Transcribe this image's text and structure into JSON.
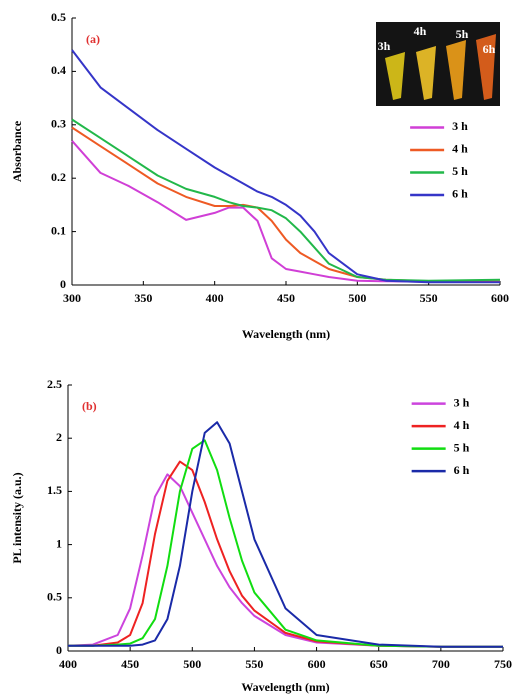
{
  "chart_data": [
    {
      "type": "line",
      "panel_label": "(a)",
      "x_label": "Wavelength (nm)",
      "y_label": "Absorbance",
      "xlim": [
        300,
        600
      ],
      "xticks": [
        300,
        350,
        400,
        450,
        500,
        550,
        600
      ],
      "ylim": [
        0,
        0.5
      ],
      "yticks": [
        0,
        0.1,
        0.2,
        0.3,
        0.4,
        0.5
      ],
      "legend": "right",
      "inset_labels": [
        "3h",
        "4h",
        "5h",
        "6h"
      ],
      "x": [
        300,
        320,
        340,
        360,
        380,
        400,
        410,
        420,
        430,
        440,
        450,
        460,
        470,
        480,
        500,
        520,
        550,
        600
      ],
      "series": [
        {
          "name": "3 h",
          "color": "#d03fd6",
          "values": [
            0.27,
            0.21,
            0.185,
            0.155,
            0.122,
            0.135,
            0.145,
            0.145,
            0.12,
            0.05,
            0.03,
            0.025,
            0.02,
            0.015,
            0.008,
            0.007,
            0.006,
            0.006
          ]
        },
        {
          "name": "4 h",
          "color": "#ee5a24",
          "values": [
            0.295,
            0.26,
            0.225,
            0.19,
            0.165,
            0.148,
            0.148,
            0.15,
            0.145,
            0.12,
            0.085,
            0.06,
            0.045,
            0.03,
            0.015,
            0.01,
            0.007,
            0.006
          ]
        },
        {
          "name": "5 h",
          "color": "#22b84a",
          "values": [
            0.31,
            0.275,
            0.24,
            0.205,
            0.18,
            0.165,
            0.155,
            0.148,
            0.145,
            0.14,
            0.125,
            0.1,
            0.07,
            0.04,
            0.015,
            0.01,
            0.008,
            0.01
          ]
        },
        {
          "name": "6 h",
          "color": "#3535c8",
          "values": [
            0.44,
            0.37,
            0.33,
            0.29,
            0.255,
            0.22,
            0.205,
            0.19,
            0.175,
            0.165,
            0.15,
            0.13,
            0.1,
            0.06,
            0.02,
            0.008,
            0.005,
            0.005
          ]
        }
      ]
    },
    {
      "type": "line",
      "panel_label": "(b)",
      "x_label": "Wavelength (nm)",
      "y_label": "PL intensity (a.u.)",
      "xlim": [
        400,
        750
      ],
      "xticks": [
        400,
        450,
        500,
        550,
        600,
        650,
        700,
        750
      ],
      "ylim": [
        0,
        2.5
      ],
      "yticks": [
        0,
        0.5,
        1,
        1.5,
        2,
        2.5
      ],
      "legend": "upper right",
      "x": [
        400,
        420,
        440,
        450,
        460,
        470,
        480,
        490,
        500,
        510,
        520,
        530,
        540,
        550,
        575,
        600,
        650,
        700,
        750
      ],
      "series": [
        {
          "name": "3 h",
          "color": "#cc44dd",
          "values": [
            0.05,
            0.06,
            0.15,
            0.4,
            0.9,
            1.45,
            1.66,
            1.55,
            1.3,
            1.05,
            0.8,
            0.6,
            0.45,
            0.33,
            0.15,
            0.08,
            0.05,
            0.04,
            0.04
          ]
        },
        {
          "name": "4 h",
          "color": "#ee2222",
          "values": [
            0.05,
            0.05,
            0.08,
            0.15,
            0.45,
            1.1,
            1.6,
            1.78,
            1.7,
            1.4,
            1.05,
            0.75,
            0.52,
            0.38,
            0.17,
            0.09,
            0.05,
            0.04,
            0.04
          ]
        },
        {
          "name": "5 h",
          "color": "#11dd11",
          "values": [
            0.05,
            0.05,
            0.06,
            0.07,
            0.12,
            0.3,
            0.8,
            1.5,
            1.9,
            1.98,
            1.7,
            1.25,
            0.85,
            0.55,
            0.2,
            0.1,
            0.05,
            0.04,
            0.04
          ]
        },
        {
          "name": "6 h",
          "color": "#1a2aa8",
          "values": [
            0.05,
            0.05,
            0.05,
            0.05,
            0.06,
            0.1,
            0.3,
            0.8,
            1.5,
            2.05,
            2.15,
            1.95,
            1.5,
            1.05,
            0.4,
            0.15,
            0.06,
            0.04,
            0.04
          ]
        }
      ]
    }
  ]
}
